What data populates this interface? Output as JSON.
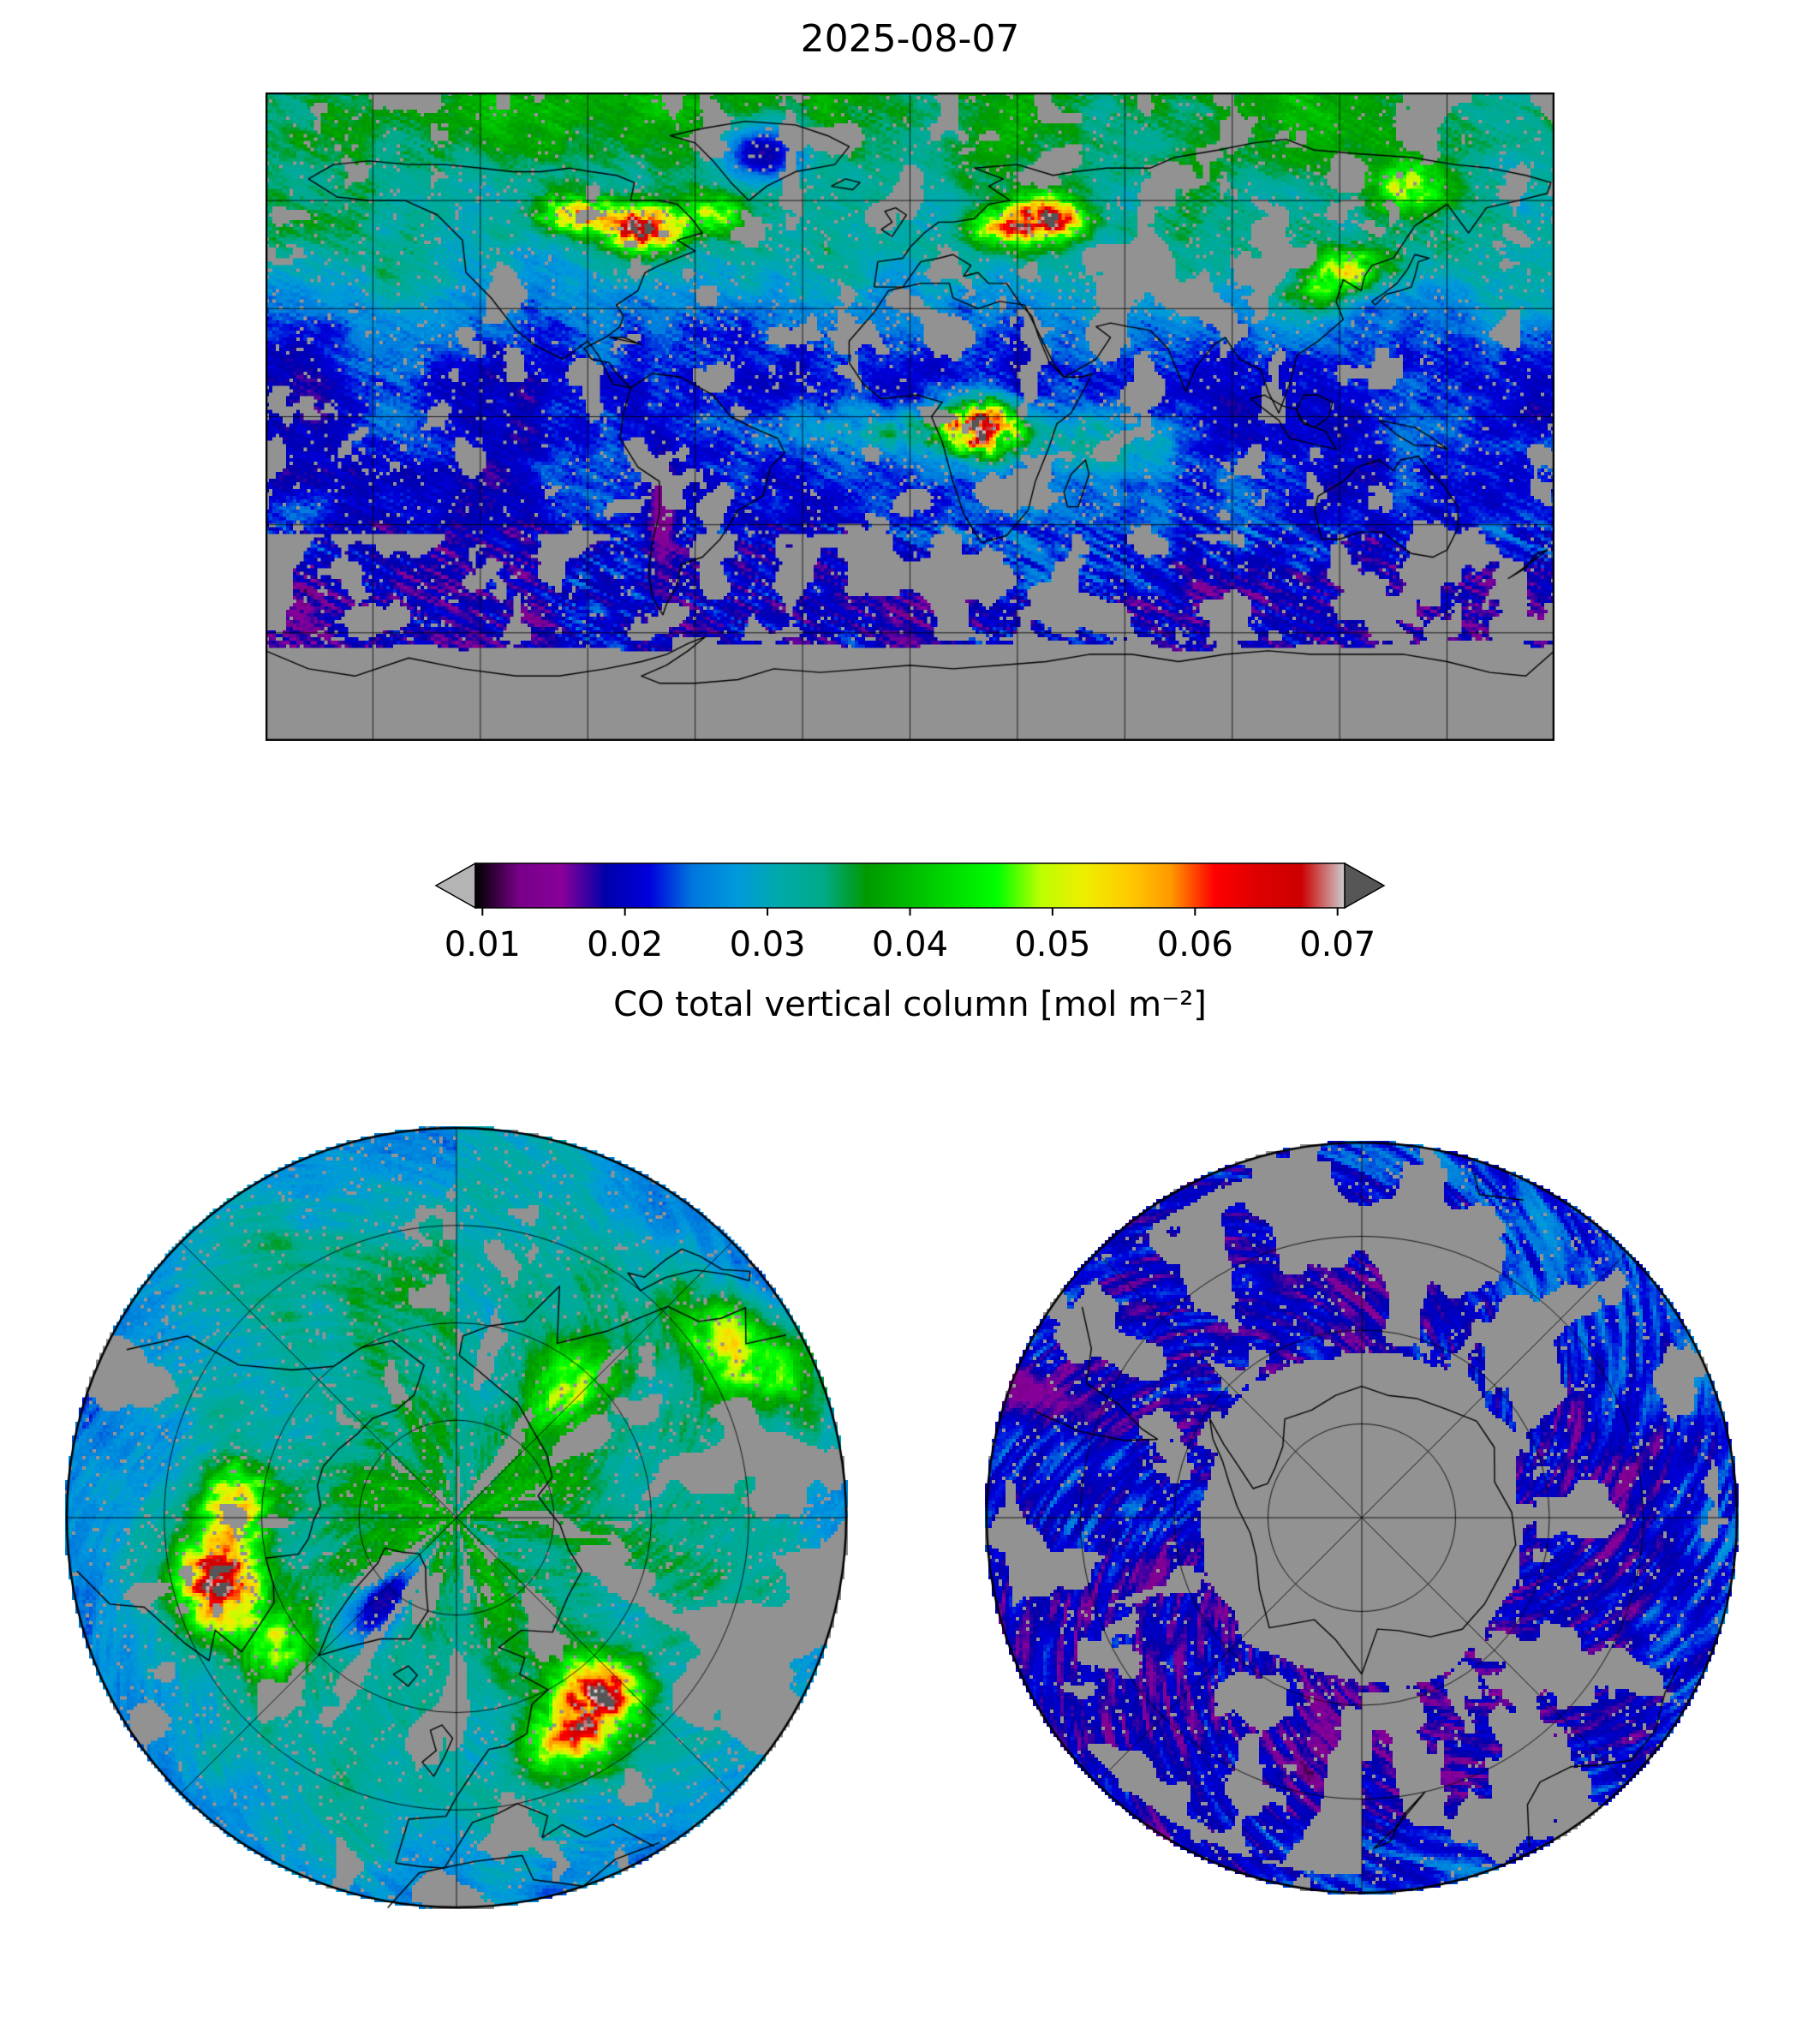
{
  "title": "2025-08-07",
  "colorbar": {
    "label": "CO total vertical column [mol m⁻²]",
    "tick_labels": [
      "0.01",
      "0.02",
      "0.03",
      "0.04",
      "0.05",
      "0.06",
      "0.07"
    ],
    "tick_values": [
      0.01,
      0.02,
      0.03,
      0.04,
      0.05,
      0.06,
      0.07
    ],
    "vmin": 0.0095,
    "vmax": 0.0705,
    "colormap": "nipy_spectral",
    "under_color": "#b4b4b4",
    "over_color": "#565656",
    "missing_color": "#929292",
    "stops": [
      [
        0.0,
        "#000000"
      ],
      [
        0.05,
        "#770088"
      ],
      [
        0.1,
        "#880099"
      ],
      [
        0.15,
        "#0000aa"
      ],
      [
        0.2,
        "#0000dd"
      ],
      [
        0.25,
        "#0077dd"
      ],
      [
        0.3,
        "#0099dd"
      ],
      [
        0.35,
        "#00aaaa"
      ],
      [
        0.4,
        "#00aa88"
      ],
      [
        0.45,
        "#009900"
      ],
      [
        0.5,
        "#00bb00"
      ],
      [
        0.55,
        "#00dd00"
      ],
      [
        0.6,
        "#00ff00"
      ],
      [
        0.65,
        "#bbff00"
      ],
      [
        0.7,
        "#eeee00"
      ],
      [
        0.75,
        "#ffcc00"
      ],
      [
        0.8,
        "#ff9900"
      ],
      [
        0.85,
        "#ff0000"
      ],
      [
        0.9,
        "#dd0000"
      ],
      [
        0.95,
        "#cc0000"
      ],
      [
        1.0,
        "#cccccc"
      ]
    ]
  },
  "chart_data": {
    "type": "heatmap",
    "title": "2025-08-07",
    "quantity": "CO total vertical column",
    "units": "mol m⁻²",
    "colormap": "nipy_spectral",
    "value_range": [
      0.0095,
      0.0705
    ],
    "colorbar_ticks": [
      0.01,
      0.02,
      0.03,
      0.04,
      0.05,
      0.06,
      0.07
    ],
    "panels": [
      {
        "id": "global",
        "projection": "equirectangular",
        "lon_range": [
          -180,
          180
        ],
        "lat_range": [
          -90,
          90
        ],
        "graticule_spacing_deg": 30
      },
      {
        "id": "north-polar",
        "projection": "north polar azimuthal",
        "edge_latitude": 30,
        "spoke_spacing_deg": 45,
        "ring_latitudes": [
          75,
          60,
          45
        ]
      },
      {
        "id": "south-polar",
        "projection": "south polar azimuthal",
        "edge_latitude": -30,
        "spoke_spacing_deg": 45,
        "ring_latitudes": [
          -75,
          -60,
          -45
        ]
      }
    ],
    "field": {
      "base_value": 0.0215,
      "north_boost": 0.011,
      "polar_north_extra": 0.004,
      "south_drop": 0.0025,
      "antarctica_missing_south_of_lat": -61,
      "hotspots": [
        {
          "name": "central-africa",
          "lon": 20,
          "lat": -3,
          "slon": 8,
          "slat": 5.5,
          "amp": 0.042
        },
        {
          "name": "africa-atlantic-plume",
          "lon": -6,
          "lat": -4,
          "slon": 26,
          "slat": 5,
          "amp": 0.01
        },
        {
          "name": "africa-indian-ocean-plume",
          "lon": 55,
          "lat": -8,
          "slon": 18,
          "slat": 6,
          "amp": 0.008
        },
        {
          "name": "eastern-canada",
          "lon": -74,
          "lat": 52,
          "slon": 7,
          "slat": 4.5,
          "amp": 0.04
        },
        {
          "name": "central-canada",
          "lon": -93,
          "lat": 56,
          "slon": 8,
          "slat": 4,
          "amp": 0.026
        },
        {
          "name": "labrador-plume",
          "lon": -55,
          "lat": 57,
          "slon": 6,
          "slat": 4,
          "amp": 0.016
        },
        {
          "name": "eastern-europe",
          "lon": 38,
          "lat": 55,
          "slon": 7,
          "slat": 4.5,
          "amp": 0.038
        },
        {
          "name": "central-europe",
          "lon": 24,
          "lat": 52,
          "slon": 6,
          "slat": 4,
          "amp": 0.016
        },
        {
          "name": "east-asia",
          "lon": 123,
          "lat": 41,
          "slon": 8,
          "slat": 4,
          "amp": 0.02
        },
        {
          "name": "north-china",
          "lon": 113,
          "lat": 34,
          "slon": 6,
          "slat": 4,
          "amp": 0.012
        },
        {
          "name": "northeast-siberia",
          "lon": 138,
          "lat": 64,
          "slon": 9,
          "slat": 5,
          "amp": 0.014
        }
      ],
      "low_regions": [
        {
          "name": "greenland",
          "lon": -41,
          "lat": 73,
          "slon": 9,
          "slat": 6,
          "value": 0.018
        },
        {
          "name": "andes",
          "lon": -69,
          "lat": -27,
          "slon": 2.5,
          "slat": 11,
          "value": 0.0135
        }
      ],
      "gray_regions": [
        {
          "name": "sahara",
          "lon": 10,
          "lat": 22,
          "slon": 14,
          "slat": 6,
          "add": 0.22
        },
        {
          "name": "arabia",
          "lon": 45,
          "lat": 23,
          "slon": 9,
          "slat": 6,
          "add": 0.22
        },
        {
          "name": "central-asia",
          "lon": 70,
          "lat": 37,
          "slon": 14,
          "slat": 8,
          "add": 0.25
        },
        {
          "name": "himalaya",
          "lon": 88,
          "lat": 32,
          "slon": 7,
          "slat": 4,
          "add": 0.2
        },
        {
          "name": "east-pacific-itcz",
          "lon": -115,
          "lat": 10,
          "slon": 20,
          "slat": 7,
          "add": 0.12
        },
        {
          "name": "australia-west",
          "lon": 120,
          "lat": -25,
          "slon": 9,
          "slat": 5,
          "add": 0.12
        },
        {
          "name": "us-southwest",
          "lon": -115,
          "lat": 35,
          "slon": 7,
          "slat": 5,
          "add": 0.12
        }
      ]
    }
  }
}
